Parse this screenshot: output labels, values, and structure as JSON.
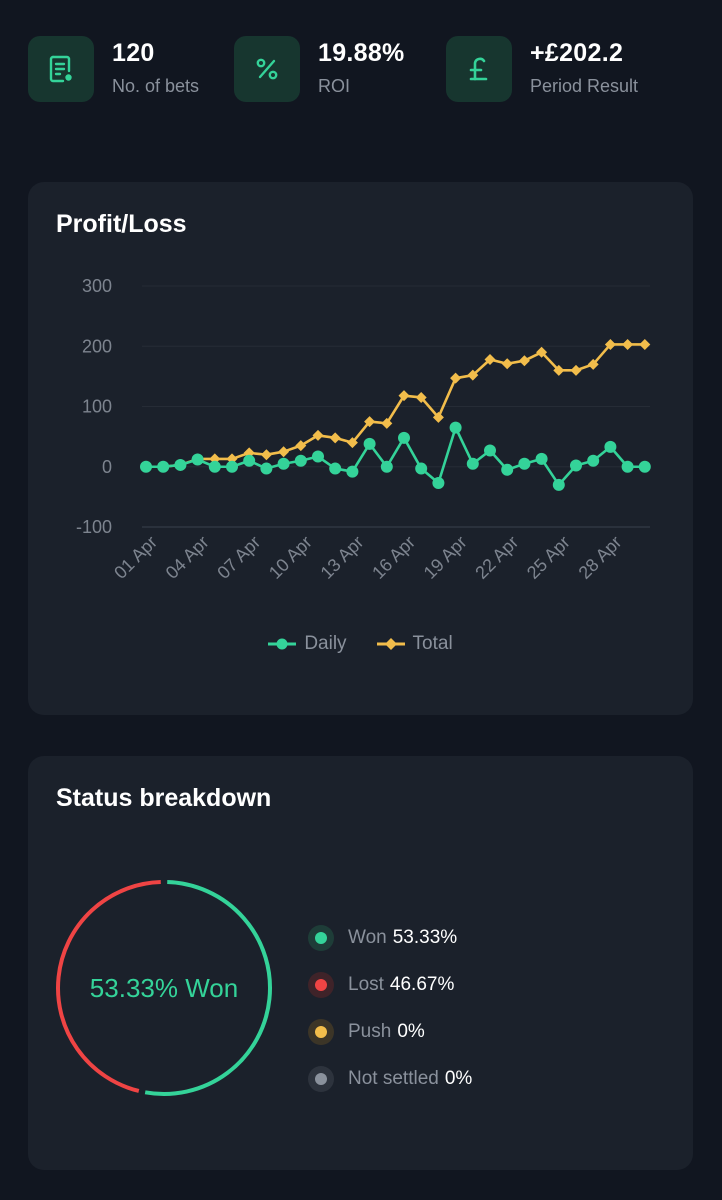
{
  "stats": [
    {
      "value": "120",
      "label": "No. of bets",
      "icon": "receipt-icon"
    },
    {
      "value": "19.88%",
      "label": "ROI",
      "icon": "percent-icon"
    },
    {
      "value": "+£202.2",
      "label": "Period Result",
      "icon": "pound-icon"
    }
  ],
  "colors": {
    "accent": "#34d399",
    "total": "#f2bd4b",
    "lost": "#ef4444",
    "push": "#f2bd4b",
    "not_settled": "#8a919c",
    "card": "#1b212b",
    "background": "#111620"
  },
  "profit_loss": {
    "title": "Profit/Loss"
  },
  "chart_data": {
    "type": "line",
    "title": "Profit/Loss",
    "xlabel": "",
    "ylabel": "",
    "ylim": [
      -100,
      300
    ],
    "yticks": [
      "300",
      "200",
      "100",
      "0",
      "-100"
    ],
    "xticks": [
      "01 Apr",
      "04 Apr",
      "07 Apr",
      "10 Apr",
      "13 Apr",
      "16 Apr",
      "19 Apr",
      "22 Apr",
      "25 Apr",
      "28 Apr"
    ],
    "x": [
      "01 Apr",
      "02 Apr",
      "03 Apr",
      "04 Apr",
      "05 Apr",
      "06 Apr",
      "07 Apr",
      "08 Apr",
      "09 Apr",
      "10 Apr",
      "11 Apr",
      "12 Apr",
      "13 Apr",
      "14 Apr",
      "15 Apr",
      "16 Apr",
      "17 Apr",
      "18 Apr",
      "19 Apr",
      "20 Apr",
      "21 Apr",
      "22 Apr",
      "23 Apr",
      "24 Apr",
      "25 Apr",
      "26 Apr",
      "27 Apr",
      "28 Apr",
      "29 Apr",
      "30 Apr"
    ],
    "grid": true,
    "legend": "bottom-center",
    "series": [
      {
        "name": "Daily",
        "marker": "circle",
        "color": "#34d399",
        "values": [
          0,
          0,
          3,
          12,
          0,
          0,
          10,
          -3,
          5,
          10,
          17,
          -3,
          -8,
          38,
          0,
          48,
          -3,
          -27,
          65,
          5,
          27,
          -5,
          5,
          13,
          -30,
          2,
          10,
          33,
          0,
          0
        ]
      },
      {
        "name": "Total",
        "marker": "diamond",
        "color": "#f2bd4b",
        "values": [
          0,
          0,
          3,
          13,
          13,
          13,
          23,
          20,
          25,
          35,
          52,
          48,
          40,
          75,
          72,
          118,
          115,
          82,
          147,
          152,
          178,
          171,
          176,
          190,
          160,
          160,
          170,
          203,
          203,
          203
        ]
      }
    ]
  },
  "status": {
    "title": "Status breakdown",
    "center_label": "53.33% Won",
    "items": [
      {
        "name": "Won",
        "pct": "53.33%",
        "value": 53.33,
        "color": "#34d399",
        "bg": "#1e3d38"
      },
      {
        "name": "Lost",
        "pct": "46.67%",
        "value": 46.67,
        "color": "#ef4444",
        "bg": "#3f2329"
      },
      {
        "name": "Push",
        "pct": "0%",
        "value": 0,
        "color": "#f2bd4b",
        "bg": "#3c3527"
      },
      {
        "name": "Not settled",
        "pct": "0%",
        "value": 0,
        "color": "#8a919c",
        "bg": "#2d333d"
      }
    ]
  }
}
